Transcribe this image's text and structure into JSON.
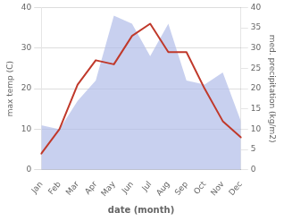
{
  "chart_data": {
    "type": "line",
    "categories": [
      "Jan",
      "Feb",
      "Mar",
      "Apr",
      "May",
      "Jun",
      "Jul",
      "Aug",
      "Sep",
      "Oct",
      "Nov",
      "Dec"
    ],
    "xlabel": "date (month)",
    "ylabel": "max temp (C)",
    "y2label": "med. precipitation (kg/m2)",
    "series": [
      {
        "type": "area",
        "color": "#b0bce8",
        "axis": "y2",
        "values": [
          11,
          10,
          17,
          22,
          38,
          36,
          28,
          36,
          22,
          21,
          24,
          12
        ]
      },
      {
        "type": "line",
        "color": "#c0392b",
        "values": [
          4,
          10,
          21,
          27,
          26,
          33,
          36,
          29,
          29,
          20,
          12,
          8
        ]
      }
    ],
    "ylim": [
      0,
      40
    ],
    "yticks": [
      0,
      10,
      20,
      30,
      40
    ],
    "y2lim": [
      0,
      40
    ],
    "y2ticks": [
      0,
      5,
      10,
      15,
      20,
      25,
      30,
      35,
      40
    ],
    "grid": true
  }
}
